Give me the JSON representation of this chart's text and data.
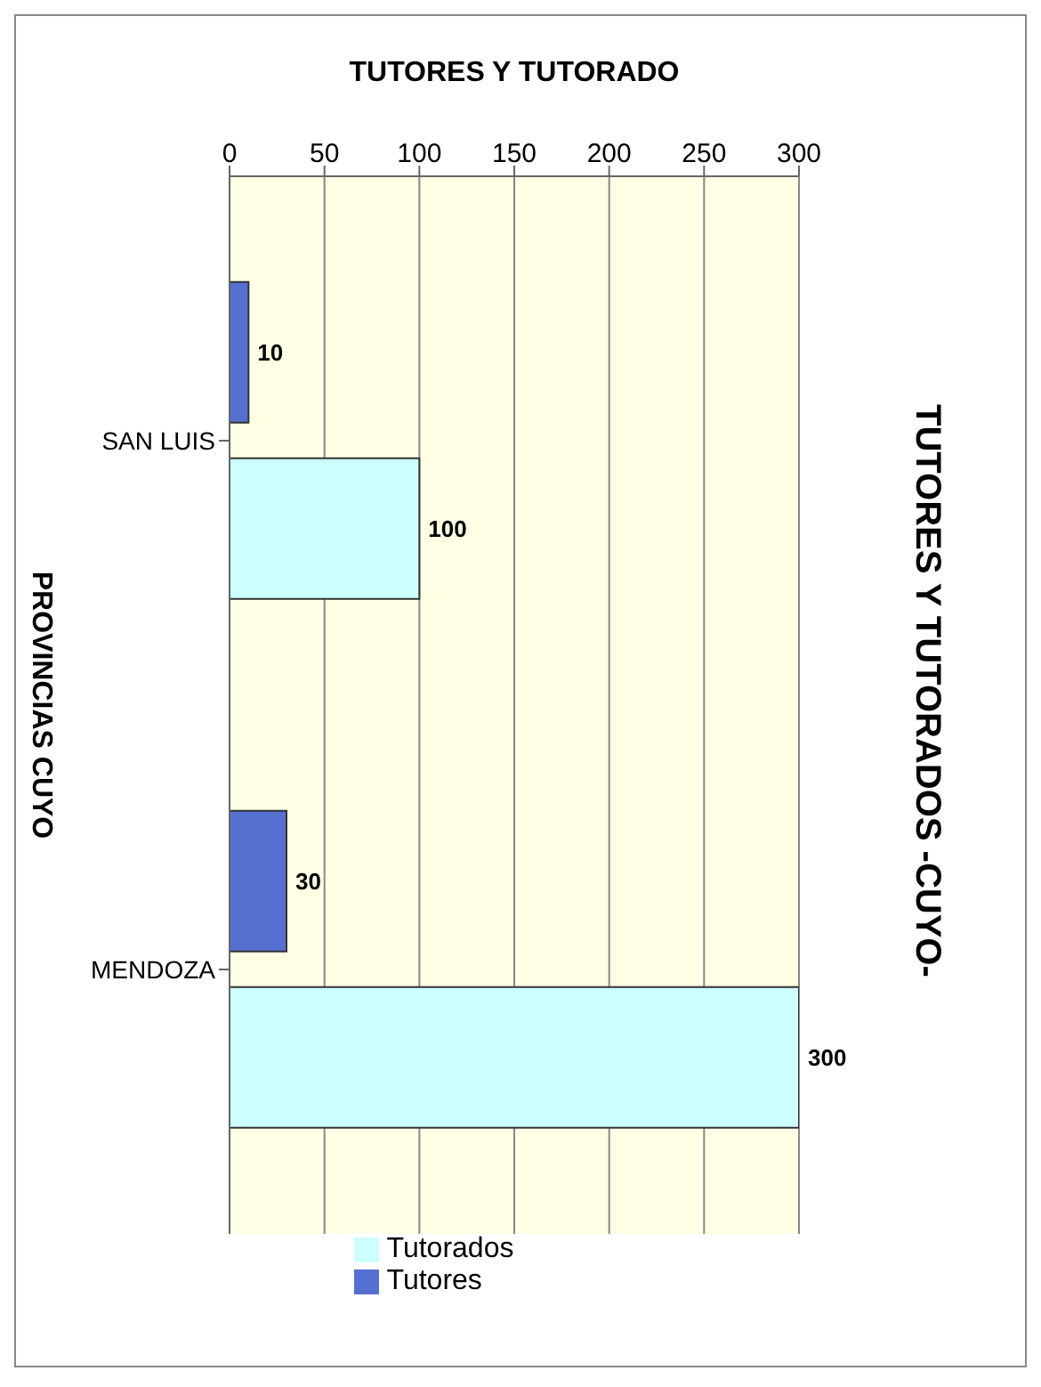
{
  "chart_data": {
    "type": "bar",
    "orientation": "horizontal",
    "title": "TUTORES Y TUTORADOS -CUYO-",
    "xlabel": "TUTORES Y TUTORADO",
    "ylabel": "PROVINCIAS CUYO",
    "categories": [
      "SAN LUIS",
      "MENDOZA"
    ],
    "series": [
      {
        "name": "Tutores",
        "color": "#5570d0",
        "values": [
          10,
          30
        ]
      },
      {
        "name": "Tutorados",
        "color": "#ccffff",
        "values": [
          100,
          300
        ]
      }
    ],
    "xlim": [
      0,
      300
    ],
    "xticks": [
      0,
      50,
      100,
      150,
      200,
      250,
      300
    ],
    "grid": "x",
    "legend": "bottom",
    "data_labels": true
  }
}
